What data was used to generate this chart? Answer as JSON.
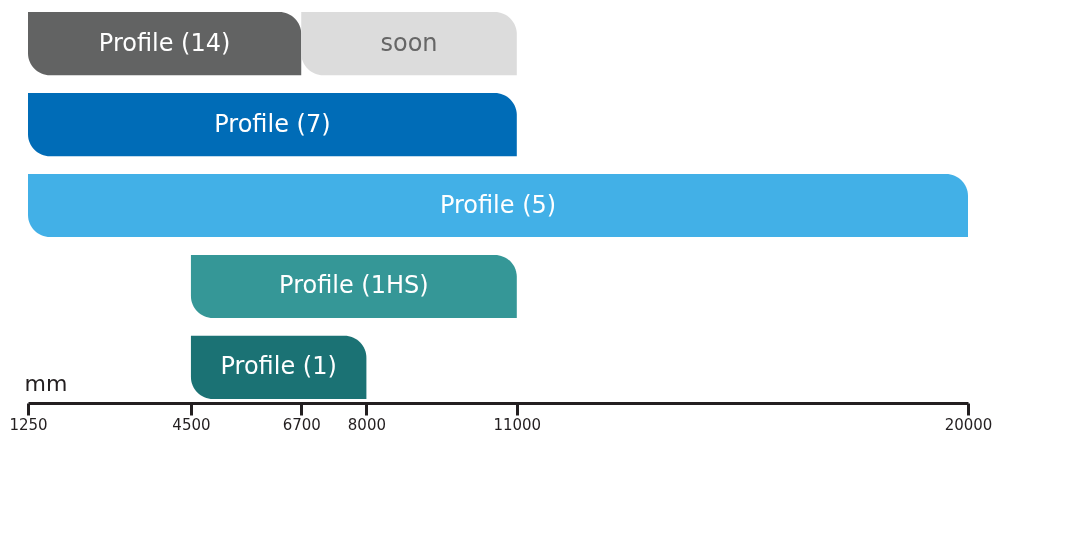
{
  "chart_data": {
    "type": "bar",
    "orientation": "horizontal",
    "stacked": true,
    "categories": [
      "Profile (14)",
      "Profile (7)",
      "Profile (5)",
      "Profile (1HS)",
      "Profile (1)"
    ],
    "series": [
      {
        "colors": [
          "#626363",
          "#006cb7",
          "#42b0e7",
          "#359797",
          "#1b7274"
        ],
        "base": [
          1250,
          1250,
          1250,
          4500,
          4500
        ],
        "values": [
          5450,
          9750,
          18750,
          6500,
          3500
        ]
      },
      {
        "name": "soon",
        "color": "#dcdcdc",
        "base": [
          6700,
          null,
          null,
          null,
          null
        ],
        "values": [
          4300,
          null,
          null,
          null,
          null
        ]
      }
    ],
    "xlabel": "mm",
    "xlim": [
      1250,
      20000
    ],
    "xticks": [
      1250,
      4500,
      6700,
      8000,
      11000,
      20000
    ],
    "tick_labels": "x",
    "grid": false,
    "legend": false
  }
}
